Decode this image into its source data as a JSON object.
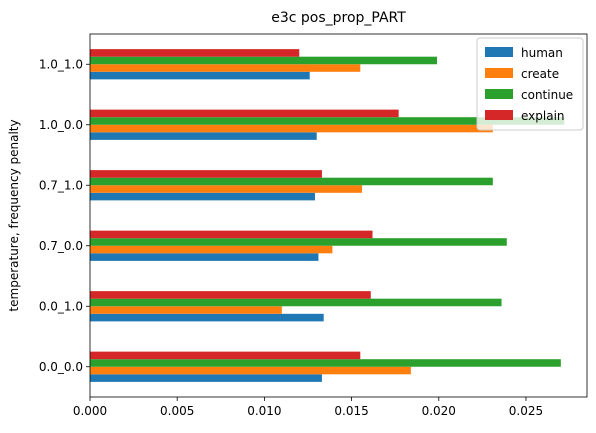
{
  "chart_data": {
    "type": "bar",
    "orientation": "horizontal",
    "title": "e3c pos_prop_PART",
    "xlabel": "",
    "ylabel": "temperature, frequency penalty",
    "categories": [
      "0.0_0.0",
      "0.0_1.0",
      "0.7_0.0",
      "0.7_1.0",
      "1.0_0.0",
      "1.0_1.0"
    ],
    "xlim": [
      0.0,
      0.0285
    ],
    "xticks": [
      0.0,
      0.005,
      0.01,
      0.015,
      0.02,
      0.025
    ],
    "xtick_labels": [
      "0.000",
      "0.005",
      "0.010",
      "0.015",
      "0.020",
      "0.025"
    ],
    "series": [
      {
        "name": "human",
        "color": "#1f77b4",
        "values": [
          0.0133,
          0.0134,
          0.0131,
          0.0129,
          0.013,
          0.0126
        ]
      },
      {
        "name": "create",
        "color": "#ff7f0e",
        "values": [
          0.0184,
          0.011,
          0.0139,
          0.0156,
          0.0231,
          0.0155
        ]
      },
      {
        "name": "continue",
        "color": "#2ca02c",
        "values": [
          0.027,
          0.0236,
          0.0239,
          0.0231,
          0.0272,
          0.0199
        ]
      },
      {
        "name": "explain",
        "color": "#d62728",
        "values": [
          0.0155,
          0.0161,
          0.0162,
          0.0133,
          0.0177,
          0.012
        ]
      }
    ],
    "legend": {
      "position": "top-right",
      "entries": [
        "human",
        "create",
        "continue",
        "explain"
      ]
    },
    "grid": false
  }
}
